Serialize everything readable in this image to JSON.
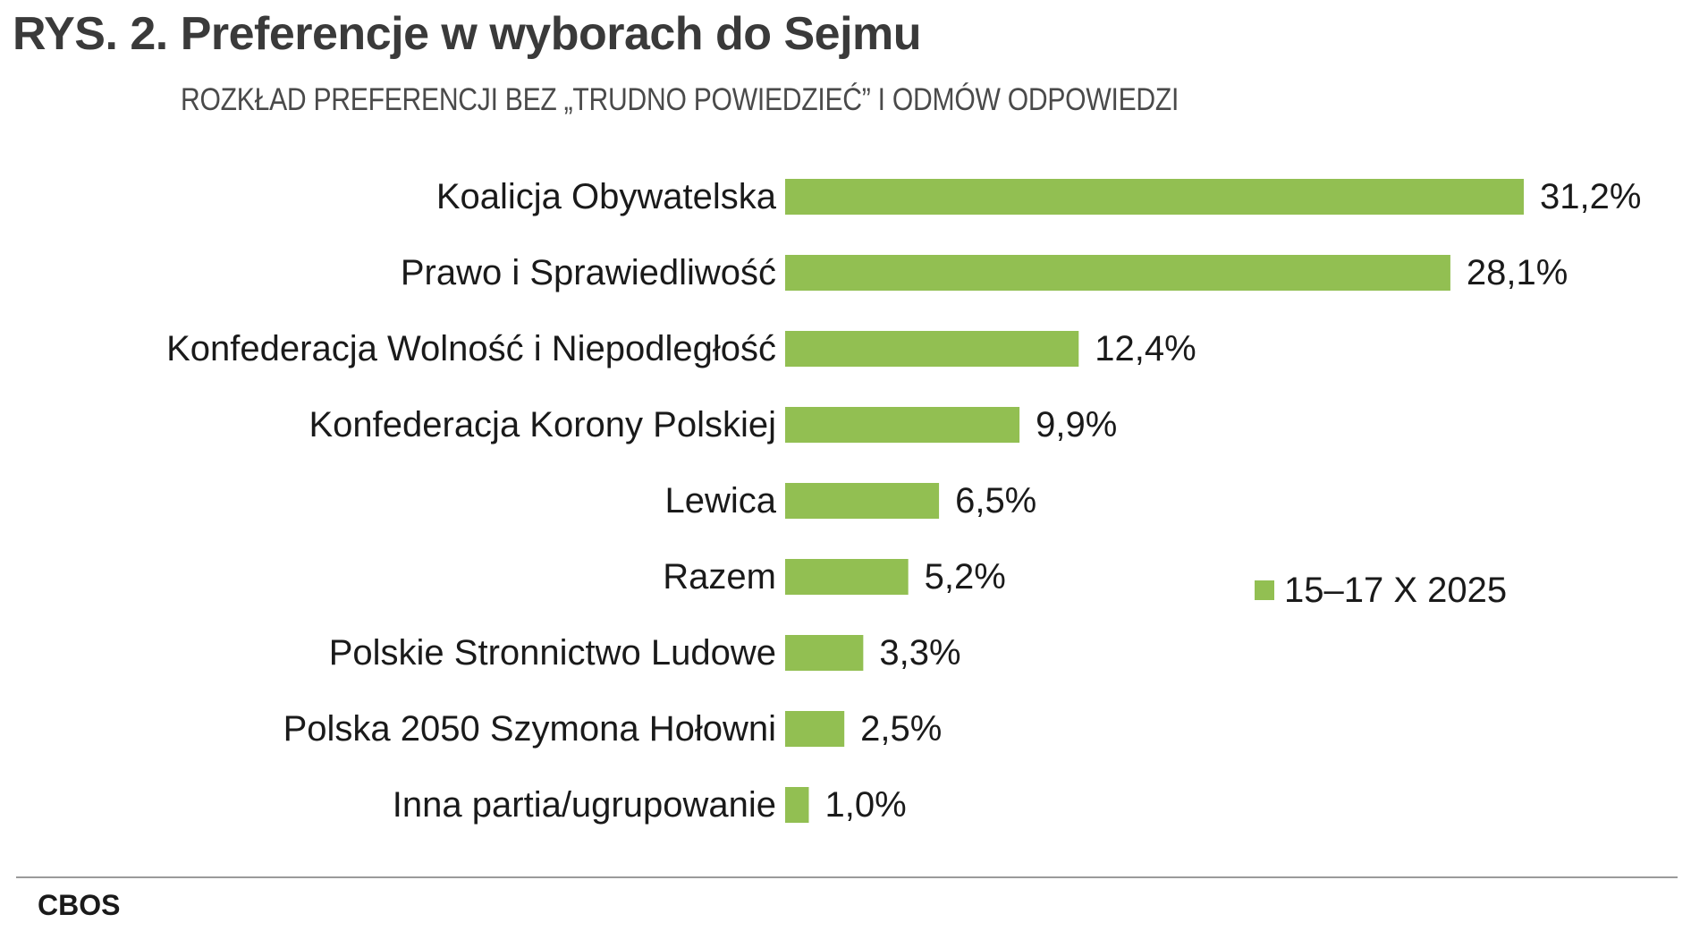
{
  "title": "RYS. 2. Preferencje w wyborach do Sejmu",
  "subtitle": "ROZKŁAD PREFERENCJI BEZ „TRUDNO POWIEDZIEĆ” I ODMÓW ODPOWIEDZI",
  "source": "CBOS",
  "colors": {
    "bar": "#92bf52",
    "text": "#1a1a1a",
    "rule": "#9a9a9a"
  },
  "chart_data": {
    "type": "bar",
    "orientation": "horizontal",
    "title": "RYS. 2. Preferencje w wyborach do Sejmu",
    "subtitle": "ROZKŁAD PREFERENCJI BEZ „TRUDNO POWIEDZIEĆ” I ODMÓW ODPOWIEDZI",
    "categories": [
      "Koalicja Obywatelska",
      "Prawo i Sprawiedliwość",
      "Konfederacja Wolność i Niepodległość",
      "Konfederacja Korony Polskiej",
      "Lewica",
      "Razem",
      "Polskie Stronnictwo Ludowe",
      "Polska 2050 Szymona Hołowni",
      "Inna partia/ugrupowanie"
    ],
    "series": [
      {
        "name": "15–17 X 2025",
        "color": "#92bf52",
        "values": [
          31.2,
          28.1,
          12.4,
          9.9,
          6.5,
          5.2,
          3.3,
          2.5,
          1.0
        ],
        "labels": [
          "31,2%",
          "28,1%",
          "12,4%",
          "9,9%",
          "6,5%",
          "5,2%",
          "3,3%",
          "2,5%",
          "1,0%"
        ]
      }
    ],
    "xlim": [
      0,
      31.2
    ],
    "legend": "right",
    "grid": false,
    "axes_visible": false
  }
}
